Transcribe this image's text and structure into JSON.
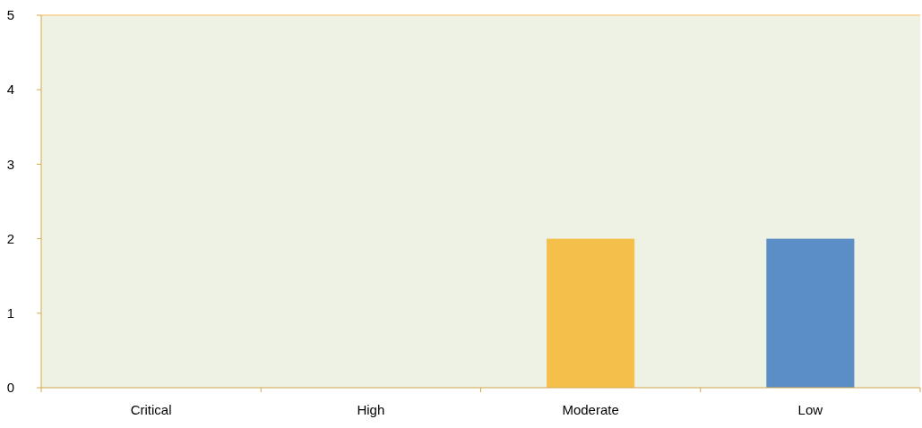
{
  "chart_data": {
    "type": "bar",
    "categories": [
      "Critical",
      "High",
      "Moderate",
      "Low"
    ],
    "values": [
      0,
      0,
      2,
      2
    ],
    "colors": [
      "#c0504d",
      "#f79646",
      "#f5bf4b",
      "#5b8ec7"
    ],
    "ylim": [
      0,
      5
    ],
    "yticks": [
      0,
      1,
      2,
      3,
      4,
      5
    ],
    "grid": false
  }
}
